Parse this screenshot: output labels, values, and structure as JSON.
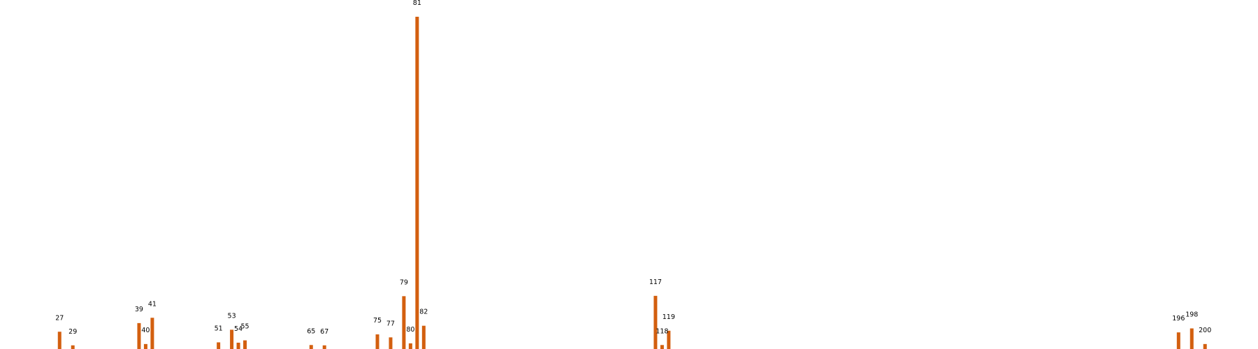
{
  "chart_data": {
    "type": "bar",
    "title": "",
    "xlabel": "",
    "ylabel": "",
    "xlim": [
      18,
      208
    ],
    "ylim": [
      0,
      100
    ],
    "bar_color": "#d35f0f",
    "label_color": "#000000",
    "axes_visible": false,
    "grid": false,
    "categories": [
      "27",
      "29",
      "39",
      "40",
      "41",
      "51",
      "53",
      "54",
      "55",
      "65",
      "67",
      "75",
      "77",
      "79",
      "80",
      "81",
      "82",
      "117",
      "118",
      "119",
      "196",
      "198",
      "200"
    ],
    "x": [
      27,
      29,
      39,
      40,
      41,
      51,
      53,
      54,
      55,
      65,
      67,
      75,
      77,
      79,
      80,
      81,
      82,
      117,
      118,
      119,
      196,
      198,
      200
    ],
    "values": [
      5.2,
      1.1,
      7.8,
      1.5,
      9.4,
      2.0,
      5.8,
      1.9,
      2.6,
      1.2,
      1.1,
      4.4,
      3.5,
      15.9,
      1.7,
      100,
      7.0,
      16.0,
      1.2,
      5.5,
      5.0,
      6.2,
      1.5
    ]
  }
}
